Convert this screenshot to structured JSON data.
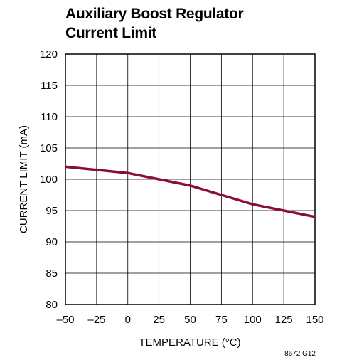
{
  "chart_data": {
    "type": "line",
    "title_lines": [
      "Auxiliary Boost Regulator",
      "Current Limit"
    ],
    "xlabel": "TEMPERATURE (°C)",
    "ylabel": "CURRENT LIMIT (mA)",
    "xlim": [
      -50,
      150
    ],
    "ylim": [
      80,
      120
    ],
    "x_ticks": [
      -50,
      -25,
      0,
      25,
      50,
      75,
      100,
      125,
      150
    ],
    "x_tick_labels": [
      "–50",
      "–25",
      "0",
      "25",
      "50",
      "75",
      "100",
      "125",
      "150"
    ],
    "y_ticks": [
      80,
      85,
      90,
      95,
      100,
      105,
      110,
      115,
      120
    ],
    "y_tick_labels": [
      "80",
      "85",
      "90",
      "95",
      "100",
      "105",
      "110",
      "115",
      "120"
    ],
    "grid": true,
    "series": [
      {
        "color": "#8b0f33",
        "x": [
          -50,
          -25,
          0,
          25,
          50,
          75,
          100,
          125,
          150
        ],
        "y": [
          102,
          101.5,
          101,
          100,
          99,
          97.5,
          96,
          95,
          94
        ]
      }
    ],
    "figure_id": "8672 G12"
  }
}
